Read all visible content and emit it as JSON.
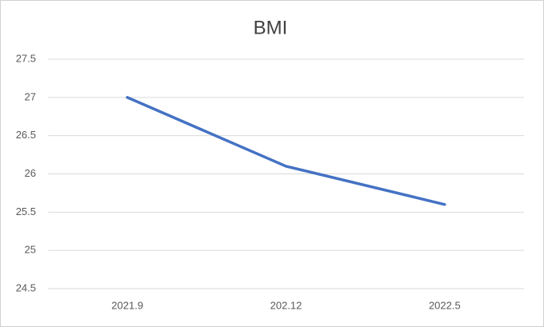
{
  "chart_data": {
    "type": "line",
    "title": "BMI",
    "categories": [
      "2021.9",
      "202.12",
      "2022.5"
    ],
    "values": [
      27,
      26.1,
      25.6
    ],
    "color": "#4472c4",
    "ylim": [
      24.5,
      27.5
    ],
    "yticks": [
      24.5,
      25,
      25.5,
      26,
      26.5,
      27,
      27.5
    ],
    "grid": true
  }
}
